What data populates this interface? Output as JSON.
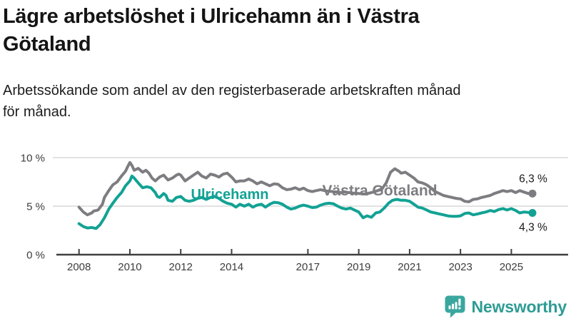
{
  "header": {
    "title_lines": [
      "Lägre arbetslöshet i Ulricehamn än i Västra",
      "Götaland"
    ],
    "subtitle_lines": [
      "Arbetssökande som andel av den registerbaserade arbetskraften månad",
      "för månad."
    ]
  },
  "footer": {
    "logo_text": "Newsworthy"
  },
  "colors": {
    "ulricehamn": "#12a294",
    "vastra_gotaland": "#7d7d81",
    "axis": "#3f3f3f",
    "grid": "#d9d9d9",
    "tick_text": "#3d3d3d",
    "end_label_text": "#1a1a1a",
    "logo_teal": "#3aa79f",
    "logo_wordmark": "#2e9c94"
  },
  "chart_data": {
    "type": "line",
    "title": "Lägre arbetslöshet i Ulricehamn än i Västra Götaland",
    "subtitle": "Arbetssökande som andel av den registerbaserade arbetskraften månad för månad.",
    "unit": "%",
    "xlim": [
      2008,
      2026.2
    ],
    "ylim": [
      0,
      10.5
    ],
    "grid": "horizontal",
    "legend": "inline-labels",
    "x_ticks": [
      {
        "year": 2008,
        "label": "2008"
      },
      {
        "year": 2010,
        "label": "2010"
      },
      {
        "year": 2012,
        "label": "2012"
      },
      {
        "year": 2014,
        "label": "2014"
      },
      {
        "year": 2017,
        "label": "2017"
      },
      {
        "year": 2019,
        "label": "2019"
      },
      {
        "year": 2021,
        "label": "2021"
      },
      {
        "year": 2023,
        "label": "2023"
      },
      {
        "year": 2025,
        "label": "2025"
      }
    ],
    "y_ticks": [
      {
        "value": 10,
        "label": "10 %"
      },
      {
        "value": 5,
        "label": "5 %"
      },
      {
        "value": 0,
        "label": "0 %"
      }
    ],
    "y_gridlines": [
      5,
      10
    ],
    "series": [
      {
        "name": "Västra Götaland",
        "color": "#7d7d81",
        "end_label": "6,3 %",
        "end_label_position": "above",
        "end_value": 6.3,
        "points": [
          [
            2008.0,
            4.9
          ],
          [
            2008.17,
            4.4
          ],
          [
            2008.33,
            4.1
          ],
          [
            2008.5,
            4.3
          ],
          [
            2008.58,
            4.5
          ],
          [
            2008.75,
            4.6
          ],
          [
            2008.92,
            5.2
          ],
          [
            2009.0,
            5.9
          ],
          [
            2009.17,
            6.6
          ],
          [
            2009.33,
            7.2
          ],
          [
            2009.5,
            7.5
          ],
          [
            2009.67,
            8.1
          ],
          [
            2009.83,
            8.6
          ],
          [
            2009.92,
            9.1
          ],
          [
            2010.0,
            9.5
          ],
          [
            2010.08,
            9.2
          ],
          [
            2010.17,
            8.7
          ],
          [
            2010.33,
            8.9
          ],
          [
            2010.5,
            8.5
          ],
          [
            2010.63,
            8.7
          ],
          [
            2010.75,
            8.4
          ],
          [
            2010.87,
            7.9
          ],
          [
            2011.0,
            7.6
          ],
          [
            2011.17,
            8.0
          ],
          [
            2011.33,
            8.2
          ],
          [
            2011.5,
            7.7
          ],
          [
            2011.67,
            7.9
          ],
          [
            2011.83,
            8.2
          ],
          [
            2011.92,
            8.3
          ],
          [
            2012.0,
            8.2
          ],
          [
            2012.17,
            7.6
          ],
          [
            2012.33,
            7.9
          ],
          [
            2012.5,
            8.2
          ],
          [
            2012.67,
            8.5
          ],
          [
            2012.83,
            8.1
          ],
          [
            2013.0,
            7.9
          ],
          [
            2013.17,
            8.3
          ],
          [
            2013.33,
            8.2
          ],
          [
            2013.5,
            8.0
          ],
          [
            2013.67,
            8.3
          ],
          [
            2013.83,
            8.4
          ],
          [
            2014.0,
            8.0
          ],
          [
            2014.17,
            7.5
          ],
          [
            2014.33,
            7.6
          ],
          [
            2014.5,
            7.6
          ],
          [
            2014.67,
            7.8
          ],
          [
            2014.83,
            7.6
          ],
          [
            2015.0,
            7.3
          ],
          [
            2015.17,
            7.5
          ],
          [
            2015.33,
            7.3
          ],
          [
            2015.5,
            7.1
          ],
          [
            2015.67,
            7.3
          ],
          [
            2015.83,
            7.25
          ],
          [
            2016.0,
            6.9
          ],
          [
            2016.17,
            6.7
          ],
          [
            2016.33,
            6.75
          ],
          [
            2016.5,
            6.9
          ],
          [
            2016.67,
            6.7
          ],
          [
            2016.83,
            6.85
          ],
          [
            2017.0,
            6.6
          ],
          [
            2017.17,
            6.5
          ],
          [
            2017.33,
            6.6
          ],
          [
            2017.5,
            6.7
          ],
          [
            2017.75,
            6.55
          ],
          [
            2018.0,
            6.5
          ],
          [
            2018.25,
            6.4
          ],
          [
            2018.5,
            6.45
          ],
          [
            2018.75,
            6.35
          ],
          [
            2019.0,
            6.3
          ],
          [
            2019.25,
            6.25
          ],
          [
            2019.5,
            6.4
          ],
          [
            2019.75,
            6.6
          ],
          [
            2019.92,
            6.8
          ],
          [
            2020.08,
            7.4
          ],
          [
            2020.25,
            8.5
          ],
          [
            2020.42,
            8.85
          ],
          [
            2020.58,
            8.6
          ],
          [
            2020.67,
            8.4
          ],
          [
            2020.83,
            8.5
          ],
          [
            2021.0,
            8.2
          ],
          [
            2021.17,
            7.9
          ],
          [
            2021.33,
            7.5
          ],
          [
            2021.5,
            7.4
          ],
          [
            2021.67,
            7.2
          ],
          [
            2021.83,
            6.9
          ],
          [
            2022.0,
            6.5
          ],
          [
            2022.17,
            6.3
          ],
          [
            2022.33,
            6.1
          ],
          [
            2022.5,
            6.0
          ],
          [
            2022.67,
            5.9
          ],
          [
            2022.83,
            5.8
          ],
          [
            2023.0,
            5.75
          ],
          [
            2023.17,
            5.5
          ],
          [
            2023.33,
            5.45
          ],
          [
            2023.5,
            5.7
          ],
          [
            2023.67,
            5.75
          ],
          [
            2023.83,
            5.9
          ],
          [
            2024.0,
            6.0
          ],
          [
            2024.17,
            6.1
          ],
          [
            2024.33,
            6.3
          ],
          [
            2024.5,
            6.45
          ],
          [
            2024.67,
            6.6
          ],
          [
            2024.83,
            6.5
          ],
          [
            2025.0,
            6.6
          ],
          [
            2025.17,
            6.4
          ],
          [
            2025.33,
            6.6
          ],
          [
            2025.5,
            6.45
          ],
          [
            2025.67,
            6.3
          ],
          [
            2025.83,
            6.3
          ]
        ]
      },
      {
        "name": "Ulricehamn",
        "color": "#12a294",
        "end_label": "4,3 %",
        "end_label_position": "below",
        "end_value": 4.3,
        "points": [
          [
            2008.0,
            3.2
          ],
          [
            2008.17,
            2.9
          ],
          [
            2008.33,
            2.75
          ],
          [
            2008.5,
            2.8
          ],
          [
            2008.67,
            2.7
          ],
          [
            2008.83,
            3.1
          ],
          [
            2009.0,
            3.8
          ],
          [
            2009.17,
            4.7
          ],
          [
            2009.33,
            5.3
          ],
          [
            2009.5,
            5.9
          ],
          [
            2009.67,
            6.4
          ],
          [
            2009.83,
            7.1
          ],
          [
            2010.0,
            7.6
          ],
          [
            2010.08,
            8.1
          ],
          [
            2010.17,
            7.9
          ],
          [
            2010.33,
            7.4
          ],
          [
            2010.5,
            6.9
          ],
          [
            2010.67,
            7.0
          ],
          [
            2010.83,
            6.9
          ],
          [
            2011.0,
            6.4
          ],
          [
            2011.08,
            6.0
          ],
          [
            2011.17,
            5.9
          ],
          [
            2011.33,
            6.3
          ],
          [
            2011.42,
            6.1
          ],
          [
            2011.5,
            5.6
          ],
          [
            2011.67,
            5.5
          ],
          [
            2011.83,
            5.9
          ],
          [
            2012.0,
            6.0
          ],
          [
            2012.17,
            5.6
          ],
          [
            2012.33,
            5.5
          ],
          [
            2012.5,
            5.6
          ],
          [
            2012.67,
            5.8
          ],
          [
            2012.83,
            5.9
          ],
          [
            2013.0,
            5.7
          ],
          [
            2013.17,
            5.9
          ],
          [
            2013.33,
            6.0
          ],
          [
            2013.5,
            5.8
          ],
          [
            2013.67,
            5.5
          ],
          [
            2013.83,
            5.3
          ],
          [
            2014.0,
            5.2
          ],
          [
            2014.17,
            4.9
          ],
          [
            2014.33,
            5.2
          ],
          [
            2014.5,
            5.0
          ],
          [
            2014.67,
            5.2
          ],
          [
            2014.83,
            4.9
          ],
          [
            2015.0,
            5.1
          ],
          [
            2015.17,
            5.2
          ],
          [
            2015.33,
            4.9
          ],
          [
            2015.5,
            5.2
          ],
          [
            2015.67,
            5.4
          ],
          [
            2015.83,
            5.35
          ],
          [
            2016.0,
            5.2
          ],
          [
            2016.17,
            4.9
          ],
          [
            2016.33,
            4.7
          ],
          [
            2016.5,
            4.8
          ],
          [
            2016.67,
            5.0
          ],
          [
            2016.83,
            5.1
          ],
          [
            2017.0,
            5.0
          ],
          [
            2017.17,
            4.85
          ],
          [
            2017.33,
            4.9
          ],
          [
            2017.5,
            5.1
          ],
          [
            2017.67,
            5.25
          ],
          [
            2017.83,
            5.3
          ],
          [
            2018.0,
            5.25
          ],
          [
            2018.17,
            5.0
          ],
          [
            2018.33,
            4.8
          ],
          [
            2018.5,
            4.7
          ],
          [
            2018.67,
            4.8
          ],
          [
            2018.83,
            4.6
          ],
          [
            2019.0,
            4.4
          ],
          [
            2019.17,
            3.8
          ],
          [
            2019.33,
            4.0
          ],
          [
            2019.5,
            3.85
          ],
          [
            2019.67,
            4.3
          ],
          [
            2019.83,
            4.4
          ],
          [
            2020.0,
            4.8
          ],
          [
            2020.17,
            5.3
          ],
          [
            2020.33,
            5.6
          ],
          [
            2020.5,
            5.7
          ],
          [
            2020.67,
            5.6
          ],
          [
            2020.83,
            5.6
          ],
          [
            2021.0,
            5.5
          ],
          [
            2021.17,
            5.2
          ],
          [
            2021.33,
            4.9
          ],
          [
            2021.5,
            4.8
          ],
          [
            2021.67,
            4.6
          ],
          [
            2021.83,
            4.4
          ],
          [
            2022.0,
            4.3
          ],
          [
            2022.17,
            4.2
          ],
          [
            2022.33,
            4.1
          ],
          [
            2022.5,
            4.0
          ],
          [
            2022.67,
            3.95
          ],
          [
            2022.83,
            3.95
          ],
          [
            2023.0,
            4.0
          ],
          [
            2023.17,
            4.25
          ],
          [
            2023.33,
            4.3
          ],
          [
            2023.5,
            4.1
          ],
          [
            2023.67,
            4.2
          ],
          [
            2023.83,
            4.3
          ],
          [
            2024.0,
            4.4
          ],
          [
            2024.17,
            4.55
          ],
          [
            2024.33,
            4.45
          ],
          [
            2024.5,
            4.65
          ],
          [
            2024.67,
            4.75
          ],
          [
            2024.83,
            4.6
          ],
          [
            2025.0,
            4.75
          ],
          [
            2025.17,
            4.55
          ],
          [
            2025.33,
            4.3
          ],
          [
            2025.5,
            4.4
          ],
          [
            2025.67,
            4.35
          ],
          [
            2025.83,
            4.3
          ]
        ]
      }
    ]
  }
}
